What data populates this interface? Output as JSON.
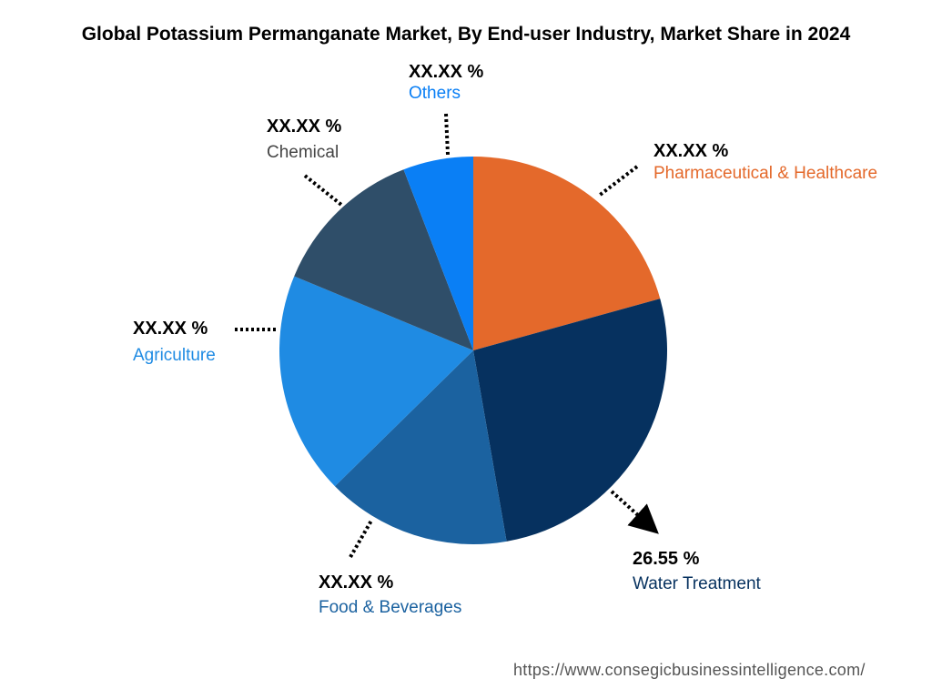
{
  "chart_data": {
    "type": "pie",
    "title": "Global Potassium Permanganate Market, By End-user Industry, Market Share in 2024",
    "start": "top",
    "direction": "clockwise",
    "slices": [
      {
        "name": "Pharmaceutical & Healthcare",
        "value": 20.7,
        "label": "XX.XX %",
        "color": "#E4692B"
      },
      {
        "name": "Water Treatment",
        "value": 26.55,
        "label": "26.55 %",
        "color": "#06315F"
      },
      {
        "name": "Food & Beverages",
        "value": 15.4,
        "label": "XX.XX %",
        "color": "#1B62A0"
      },
      {
        "name": "Agriculture",
        "value": 18.6,
        "label": "XX.XX %",
        "color": "#1F8BE3"
      },
      {
        "name": "Chemical",
        "value": 12.9,
        "label": "XX.XX %",
        "color": "#2F4E69"
      },
      {
        "name": "Others",
        "value": 5.85,
        "label": "XX.XX %",
        "color": "#0A7FF5"
      }
    ]
  },
  "footer": {
    "url": "https://www.consegicbusinessintelligence.com/"
  }
}
